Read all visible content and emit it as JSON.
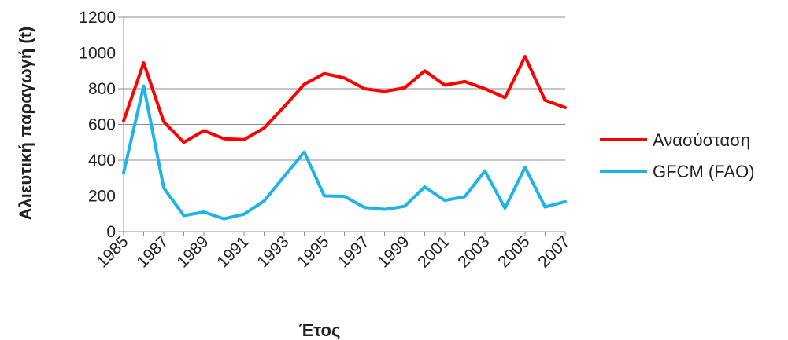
{
  "chart_data": {
    "type": "line",
    "xlabel": "Έτος",
    "ylabel": "Αλιευτική παραγωγή (t)",
    "x": [
      1985,
      1986,
      1987,
      1988,
      1989,
      1990,
      1991,
      1992,
      1993,
      1994,
      1995,
      1996,
      1997,
      1998,
      1999,
      2000,
      2001,
      2002,
      2003,
      2004,
      2005,
      2006,
      2007
    ],
    "x_tick_labels": [
      "1985",
      "1987",
      "1989",
      "1991",
      "1993",
      "1995",
      "1997",
      "1999",
      "2001",
      "2003",
      "2005",
      "2007"
    ],
    "ylim": [
      0,
      1200
    ],
    "y_ticks": [
      0,
      200,
      400,
      600,
      800,
      1000,
      1200
    ],
    "grid": "horizontal",
    "legend_position": "right",
    "series": [
      {
        "name": "Ανασύσταση",
        "color": "#ff0000",
        "values": [
          620,
          945,
          615,
          500,
          565,
          520,
          515,
          580,
          700,
          825,
          885,
          860,
          800,
          785,
          805,
          900,
          820,
          840,
          800,
          750,
          980,
          735,
          695
        ]
      },
      {
        "name": "GFCM (FAO)",
        "color": "#1fb4e8",
        "values": [
          330,
          815,
          245,
          90,
          110,
          72,
          98,
          172,
          310,
          445,
          200,
          198,
          136,
          125,
          142,
          250,
          175,
          196,
          340,
          132,
          360,
          138,
          168
        ]
      }
    ]
  }
}
